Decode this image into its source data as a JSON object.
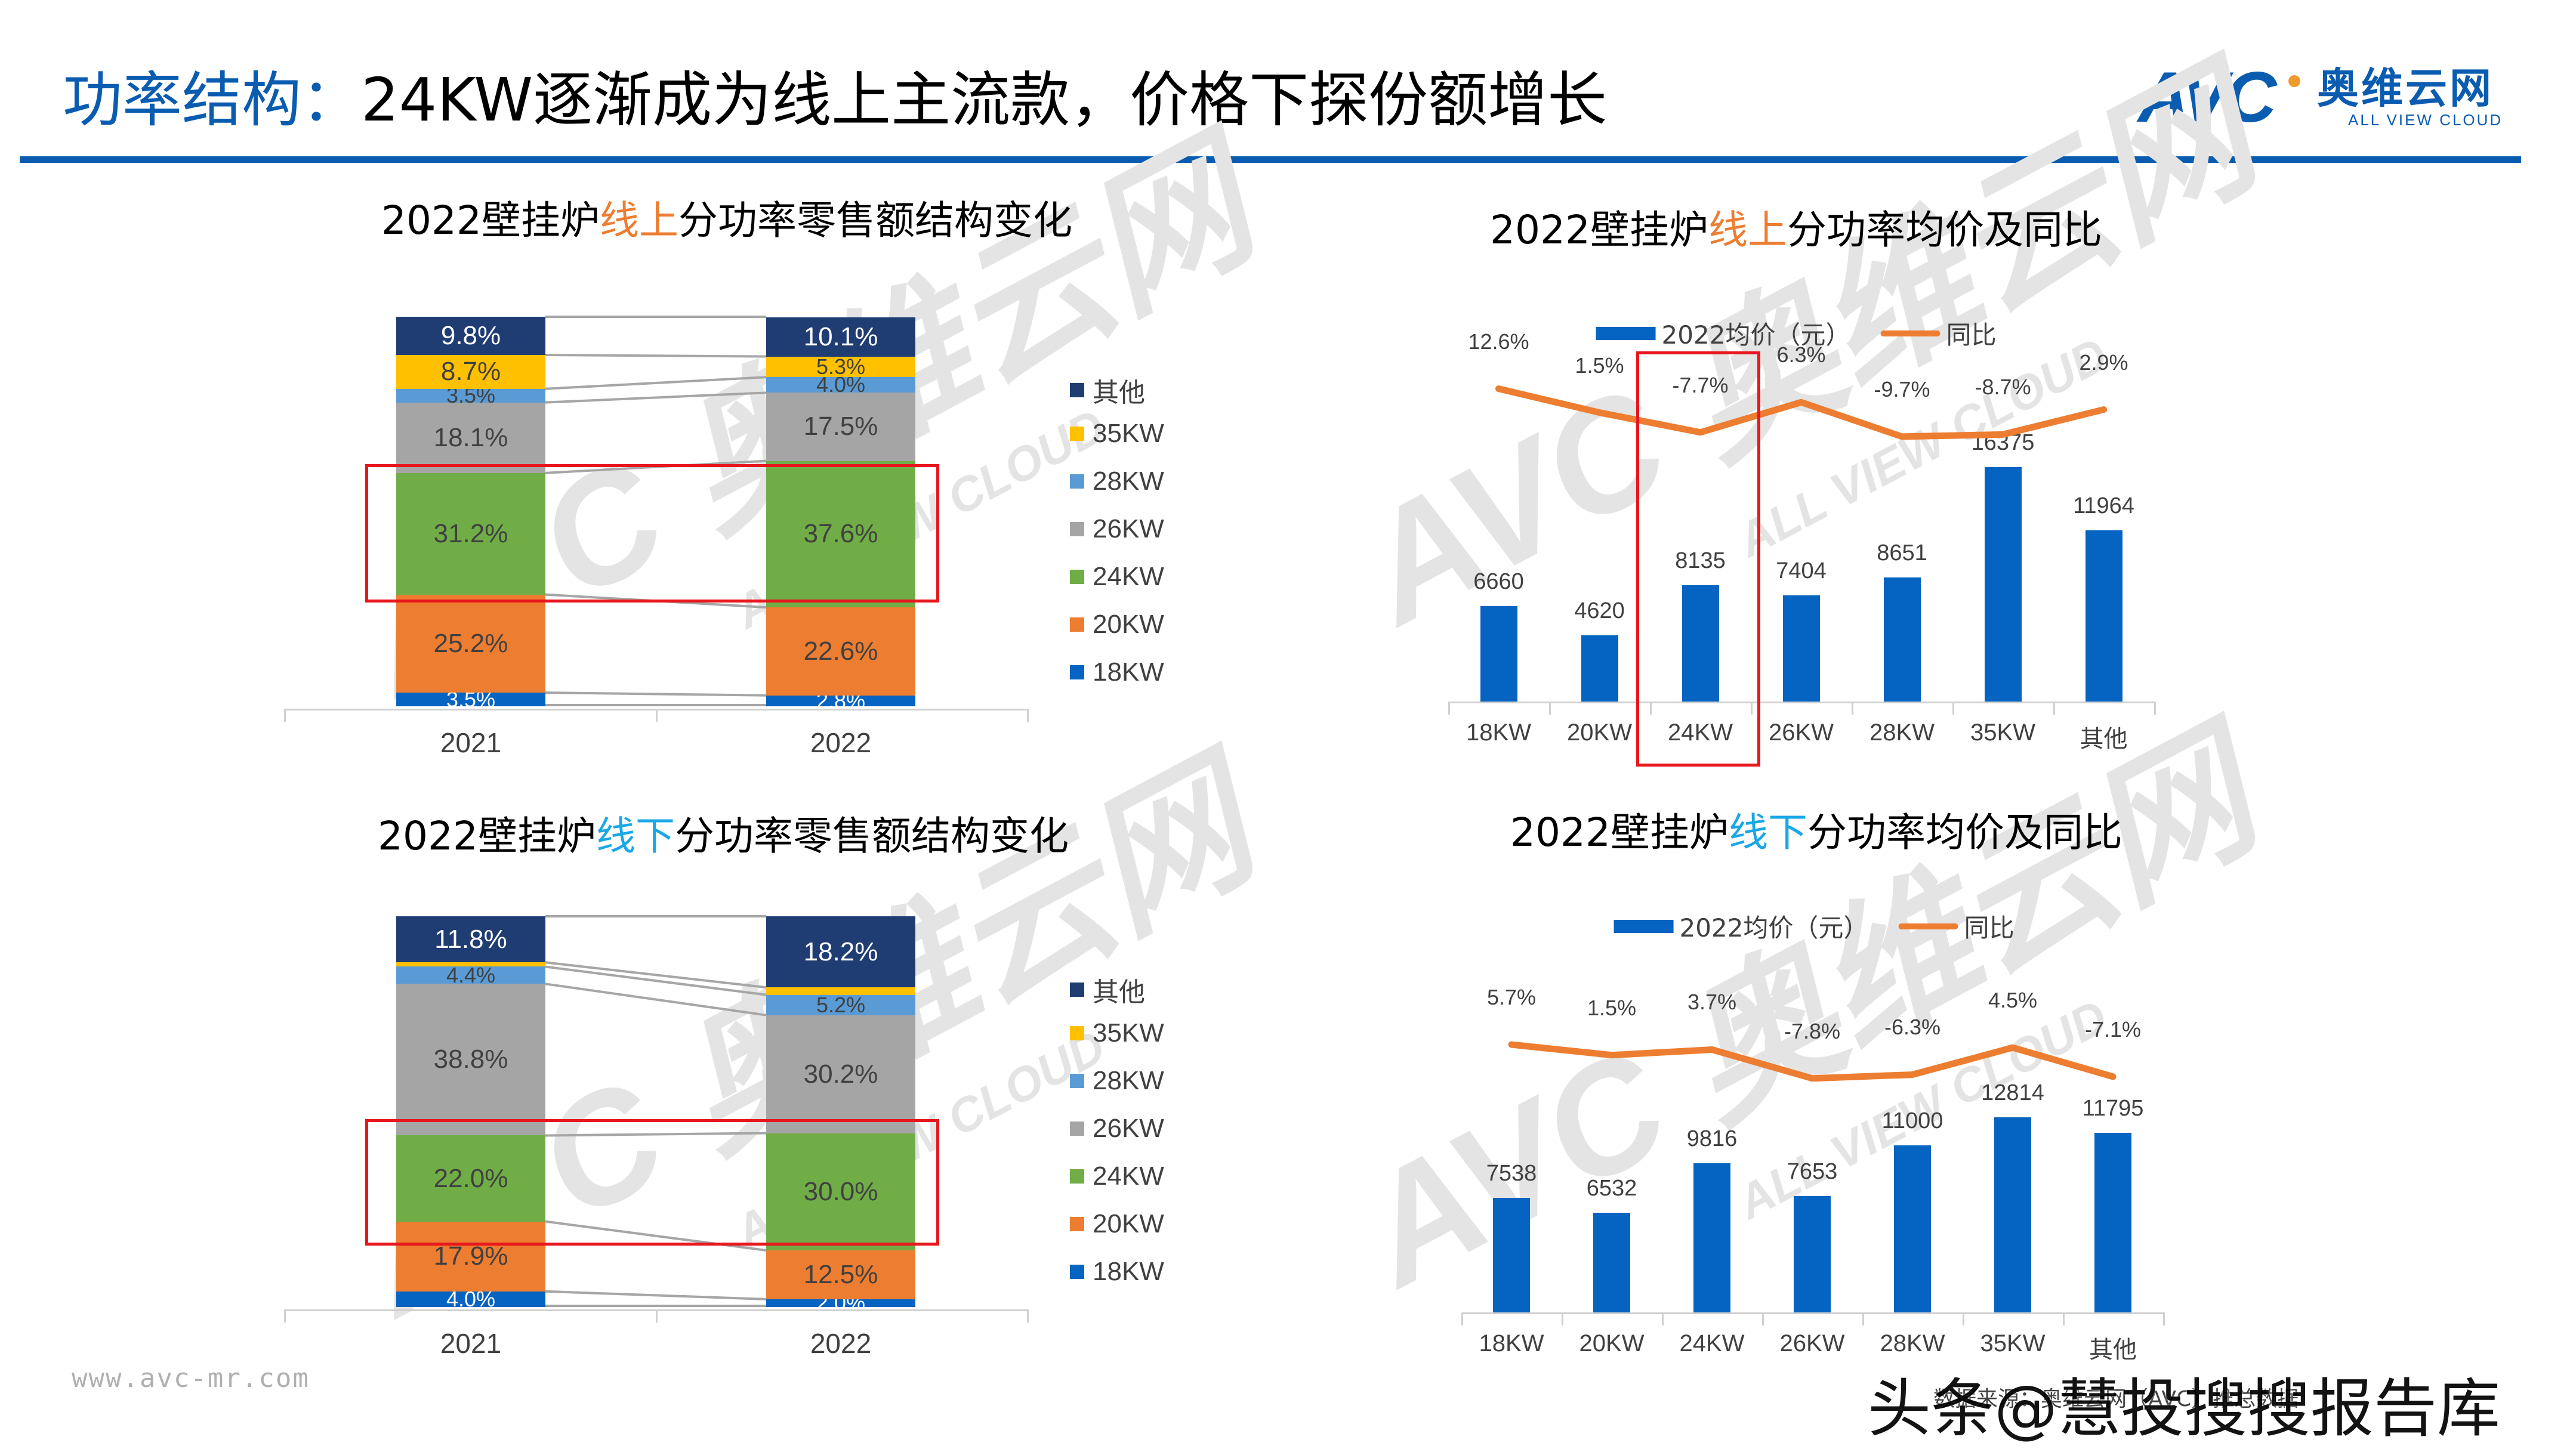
{
  "header": {
    "title_highlight": "功率结构：",
    "title_rest": "24KW逐渐成为线上主流款，价格下探份额增长",
    "logo_mark": "AVC",
    "logo_cn": "奥维云网",
    "logo_en": "ALL VIEW CLOUD",
    "accent_color": "#0a5cb0"
  },
  "watermark": {
    "mark": "AVC",
    "cn": "奥维云网",
    "en": "ALL VIEW CLOUD"
  },
  "footer": {
    "url": "www.avc-mr.com",
    "source": "数据来源：奥维云网（AVC）推总数据",
    "overlay": "头条@慧投搜搜报告库"
  },
  "colors": {
    "18KW": "#0563c1",
    "20KW": "#ed7d31",
    "24KW": "#70ad47",
    "26KW": "#a5a5a5",
    "28KW": "#5b9bd5",
    "35KW": "#ffc000",
    "其他": "#1f3d73",
    "bar": "#0563c1",
    "line": "#ed7d31",
    "highlight_box": "#e8161d"
  },
  "chart_data": [
    {
      "id": "online-share",
      "type": "bar",
      "stacked": true,
      "percent": true,
      "title_pre": "2022壁挂炉",
      "title_hl": "线上",
      "title_post": "分功率零售额结构变化",
      "categories": [
        "2021",
        "2022"
      ],
      "legend": [
        "其他",
        "35KW",
        "28KW",
        "26KW",
        "24KW",
        "20KW",
        "18KW"
      ],
      "series": [
        {
          "name": "18KW",
          "values": [
            3.5,
            2.8
          ],
          "labels": [
            "3.5%",
            "2.8%"
          ]
        },
        {
          "name": "20KW",
          "values": [
            25.2,
            22.6
          ],
          "labels": [
            "25.2%",
            "22.6%"
          ]
        },
        {
          "name": "24KW",
          "values": [
            31.2,
            37.6
          ],
          "labels": [
            "31.2%",
            "37.6%"
          ]
        },
        {
          "name": "26KW",
          "values": [
            18.1,
            17.5
          ],
          "labels": [
            "18.1%",
            "17.5%"
          ]
        },
        {
          "name": "28KW",
          "values": [
            3.5,
            4.0
          ],
          "labels": [
            "3.5%",
            "4.0%"
          ]
        },
        {
          "name": "35KW",
          "values": [
            8.7,
            5.3
          ],
          "labels": [
            "8.7%",
            "5.3%"
          ]
        },
        {
          "name": "其他",
          "values": [
            9.8,
            10.1
          ],
          "labels": [
            "9.8%",
            "10.1%"
          ]
        }
      ],
      "highlight": "24KW",
      "ylim": [
        0,
        100
      ],
      "grid": false,
      "legend_position": "right"
    },
    {
      "id": "online-price",
      "type": "bar+line",
      "title_pre": "2022壁挂炉",
      "title_hl": "线上",
      "title_post": "分功率均价及同比",
      "categories": [
        "18KW",
        "20KW",
        "24KW",
        "26KW",
        "28KW",
        "35KW",
        "其他"
      ],
      "legend": [
        "2022均价（元）",
        "同比"
      ],
      "series": [
        {
          "name": "2022均价（元）",
          "type": "bar",
          "values": [
            6660,
            4620,
            8135,
            7404,
            8651,
            16375,
            11964
          ],
          "labels": [
            "6660",
            "4620",
            "8135",
            "7404",
            "8651",
            "16375",
            "11964"
          ]
        },
        {
          "name": "同比",
          "type": "line",
          "values": [
            12.6,
            1.5,
            -7.7,
            6.3,
            -9.7,
            -8.7,
            2.9
          ],
          "labels": [
            "12.6%",
            "1.5%",
            "-7.7%",
            "6.3%",
            "-9.7%",
            "-8.7%",
            "2.9%"
          ]
        }
      ],
      "highlight": "24KW",
      "grid": false,
      "legend_position": "top"
    },
    {
      "id": "offline-share",
      "type": "bar",
      "stacked": true,
      "percent": true,
      "title_pre": "2022壁挂炉",
      "title_hl": "线下",
      "title_post": "分功率零售额结构变化",
      "categories": [
        "2021",
        "2022"
      ],
      "legend": [
        "其他",
        "35KW",
        "28KW",
        "26KW",
        "24KW",
        "20KW",
        "18KW"
      ],
      "series": [
        {
          "name": "18KW",
          "values": [
            4.0,
            2.0
          ],
          "labels": [
            "4.0%",
            "2.0%"
          ]
        },
        {
          "name": "20KW",
          "values": [
            17.9,
            12.5
          ],
          "labels": [
            "17.9%",
            "12.5%"
          ]
        },
        {
          "name": "24KW",
          "values": [
            22.0,
            30.0
          ],
          "labels": [
            "22.0%",
            "30.0%"
          ]
        },
        {
          "name": "26KW",
          "values": [
            38.8,
            30.2
          ],
          "labels": [
            "38.8%",
            "30.2%"
          ]
        },
        {
          "name": "28KW",
          "values": [
            4.4,
            5.2
          ],
          "labels": [
            "4.4%",
            "5.2%"
          ]
        },
        {
          "name": "35KW",
          "values": [
            1.1,
            1.9
          ],
          "labels": [
            "",
            ""
          ]
        },
        {
          "name": "其他",
          "values": [
            11.8,
            18.2
          ],
          "labels": [
            "11.8%",
            "18.2%"
          ]
        }
      ],
      "highlight": "24KW",
      "ylim": [
        0,
        100
      ],
      "grid": false,
      "legend_position": "right"
    },
    {
      "id": "offline-price",
      "type": "bar+line",
      "title_pre": "2022壁挂炉",
      "title_hl": "线下",
      "title_post": "分功率均价及同比",
      "categories": [
        "18KW",
        "20KW",
        "24KW",
        "26KW",
        "28KW",
        "35KW",
        "其他"
      ],
      "legend": [
        "2022均价（元）",
        "同比"
      ],
      "series": [
        {
          "name": "2022均价（元）",
          "type": "bar",
          "values": [
            7538,
            6532,
            9816,
            7653,
            11000,
            12814,
            11795
          ],
          "labels": [
            "7538",
            "6532",
            "9816",
            "7653",
            "11000",
            "12814",
            "11795"
          ]
        },
        {
          "name": "同比",
          "type": "line",
          "values": [
            5.7,
            1.5,
            3.7,
            -7.8,
            -6.3,
            4.5,
            -7.1
          ],
          "labels": [
            "5.7%",
            "1.5%",
            "3.7%",
            "-7.8%",
            "-6.3%",
            "4.5%",
            "-7.1%"
          ]
        }
      ],
      "grid": false,
      "legend_position": "top"
    }
  ]
}
